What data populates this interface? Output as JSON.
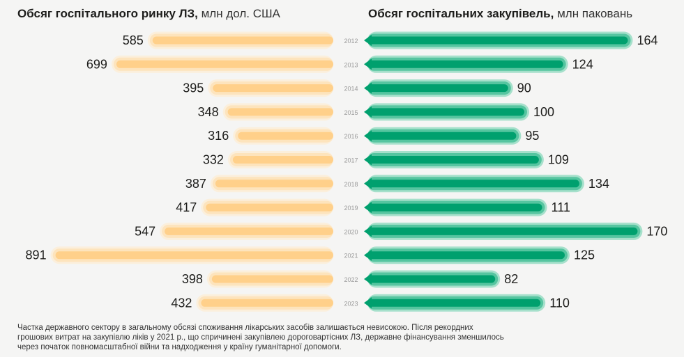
{
  "titles": {
    "left_bold": "Обсяг госпітального ринку ЛЗ,",
    "left_unit": " млн дол. США",
    "right_bold": "Обсяг госпітальних закупівель,",
    "right_unit": " млн паковань"
  },
  "footnote": "Частка державного сектору в загальному обсязі споживання лікарських засобів залишається невисокою. Після рекордних грошових витрат на закупівлю ліків у 2021 р., що спричинені закупівлею дороговартісних ЛЗ, державне фінансування зменшилось через початок повномасштабної війни та надходження у країну гуманітарної допомоги.",
  "colors": {
    "left_bar": "#ffd08a",
    "left_halo1": "#fde4bd",
    "left_halo2": "#fbefdc",
    "right_bar": "#00a06e",
    "right_halo1": "#56c5a0",
    "right_halo2": "#a6e0cb"
  },
  "chart_data": [
    {
      "type": "bar",
      "orientation": "horizontal",
      "title": "Обсяг госпітального ринку ЛЗ, млн дол. США",
      "categories": [
        "2012",
        "2013",
        "2014",
        "2015",
        "2016",
        "2017",
        "2018",
        "2019",
        "2020",
        "2021",
        "2022",
        "2023"
      ],
      "values": [
        585,
        699,
        395,
        348,
        316,
        332,
        387,
        417,
        547,
        891,
        398,
        432
      ]
    },
    {
      "type": "bar",
      "orientation": "horizontal",
      "title": "Обсяг госпітальних закупівель, млн паковань",
      "categories": [
        "2012",
        "2013",
        "2014",
        "2015",
        "2016",
        "2017",
        "2018",
        "2019",
        "2020",
        "2021",
        "2022",
        "2023"
      ],
      "values": [
        164,
        124,
        90,
        100,
        95,
        109,
        134,
        111,
        170,
        125,
        82,
        110
      ]
    }
  ]
}
